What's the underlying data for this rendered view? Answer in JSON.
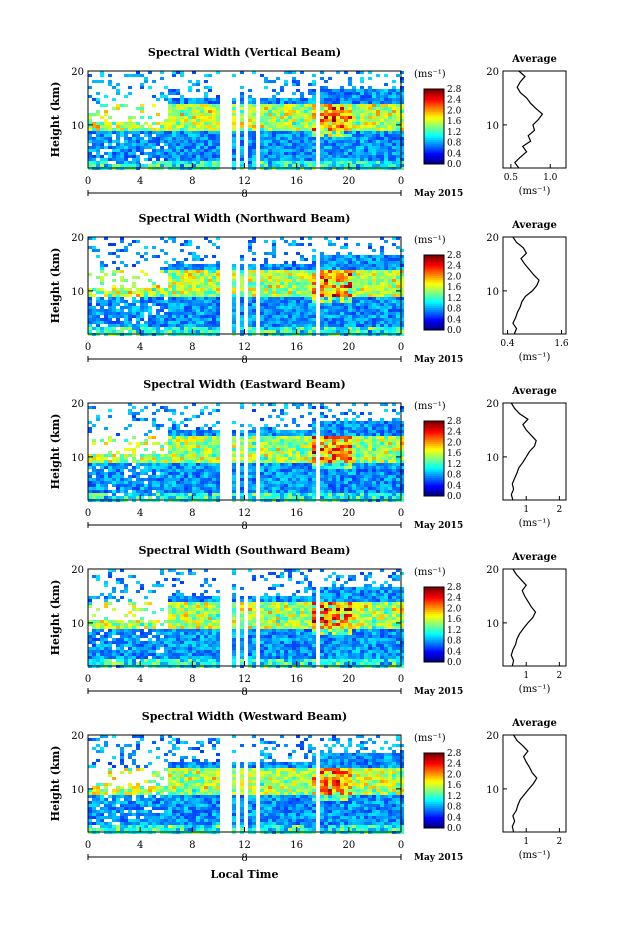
{
  "figure": {
    "date_label": "May 2015",
    "day_marker": "8",
    "xlabel": "Local Time"
  },
  "chart_data": [
    {
      "type": "heatmap",
      "title": "Spectral Width (Vertical Beam)",
      "ylabel": "Height (km)",
      "xticks": [
        "0",
        "4",
        "8",
        "12",
        "16",
        "20",
        "0"
      ],
      "xlim": [
        0,
        24
      ],
      "ylim": [
        2,
        20
      ],
      "yticks": [
        10,
        20
      ],
      "colorbar": {
        "label": "(ms⁻¹)",
        "min": 0.0,
        "max": 2.8,
        "ticks": [
          "0.0",
          "0.4",
          "0.8",
          "1.2",
          "1.6",
          "2.0",
          "2.4",
          "2.8"
        ]
      },
      "gaps_hours": [
        10.0,
        10.6,
        11.3,
        12.0,
        13.0,
        17.6
      ],
      "average_profile": {
        "title": "Average",
        "xlabel": "(ms⁻¹)",
        "xlim": [
          0.4,
          1.2
        ],
        "xticks": [
          "0.5",
          "1.0"
        ],
        "yticks": [
          10,
          20
        ],
        "points": [
          [
            0.6,
            2
          ],
          [
            0.55,
            3
          ],
          [
            0.62,
            4
          ],
          [
            0.7,
            5
          ],
          [
            0.65,
            6
          ],
          [
            0.75,
            7
          ],
          [
            0.72,
            8
          ],
          [
            0.8,
            9
          ],
          [
            0.78,
            10
          ],
          [
            0.85,
            11
          ],
          [
            0.9,
            12
          ],
          [
            0.82,
            13
          ],
          [
            0.75,
            14
          ],
          [
            0.7,
            15
          ],
          [
            0.62,
            16
          ],
          [
            0.58,
            17
          ],
          [
            0.62,
            18
          ],
          [
            0.68,
            19
          ],
          [
            0.6,
            20
          ]
        ]
      }
    },
    {
      "type": "heatmap",
      "title": "Spectral Width (Northward Beam)",
      "ylabel": "Height (km)",
      "xticks": [
        "0",
        "4",
        "8",
        "12",
        "16",
        "20",
        "0"
      ],
      "xlim": [
        0,
        24
      ],
      "ylim": [
        2,
        20
      ],
      "yticks": [
        10,
        20
      ],
      "colorbar": {
        "label": "(ms⁻¹)",
        "min": 0.0,
        "max": 2.8,
        "ticks": [
          "0.0",
          "0.4",
          "0.8",
          "1.2",
          "1.6",
          "2.0",
          "2.4",
          "2.8"
        ]
      },
      "gaps_hours": [
        10.0,
        10.6,
        11.3,
        12.0,
        13.0,
        17.6
      ],
      "average_profile": {
        "title": "Average",
        "xlabel": "(ms⁻¹)",
        "xlim": [
          0.3,
          1.7
        ],
        "xticks": [
          "0.4",
          "1.6"
        ],
        "yticks": [
          10,
          20
        ],
        "points": [
          [
            0.55,
            2
          ],
          [
            0.6,
            3
          ],
          [
            0.52,
            4
          ],
          [
            0.58,
            5
          ],
          [
            0.62,
            6
          ],
          [
            0.68,
            7
          ],
          [
            0.72,
            8
          ],
          [
            0.8,
            9
          ],
          [
            0.95,
            10
          ],
          [
            1.05,
            11
          ],
          [
            1.1,
            12
          ],
          [
            0.98,
            13
          ],
          [
            0.88,
            14
          ],
          [
            0.78,
            15
          ],
          [
            0.7,
            16
          ],
          [
            0.82,
            17
          ],
          [
            0.75,
            18
          ],
          [
            0.6,
            19
          ],
          [
            0.52,
            20
          ]
        ]
      }
    },
    {
      "type": "heatmap",
      "title": "Spectral Width (Eastward Beam)",
      "ylabel": "Height (km)",
      "xticks": [
        "0",
        "4",
        "8",
        "12",
        "16",
        "20",
        "0"
      ],
      "xlim": [
        0,
        24
      ],
      "ylim": [
        2,
        20
      ],
      "yticks": [
        10,
        20
      ],
      "colorbar": {
        "label": "(ms⁻¹)",
        "min": 0.0,
        "max": 2.8,
        "ticks": [
          "0.0",
          "0.4",
          "0.8",
          "1.2",
          "1.6",
          "2.0",
          "2.4",
          "2.8"
        ]
      },
      "gaps_hours": [
        10.0,
        10.6,
        11.3,
        12.0,
        13.0,
        17.6
      ],
      "average_profile": {
        "title": "Average",
        "xlabel": "(ms⁻¹)",
        "xlim": [
          0.3,
          2.2
        ],
        "xticks": [
          "1",
          "2"
        ],
        "yticks": [
          10,
          20
        ],
        "points": [
          [
            0.6,
            2
          ],
          [
            0.55,
            3
          ],
          [
            0.62,
            4
          ],
          [
            0.58,
            5
          ],
          [
            0.65,
            6
          ],
          [
            0.72,
            7
          ],
          [
            0.78,
            8
          ],
          [
            0.9,
            9
          ],
          [
            1.0,
            10
          ],
          [
            1.1,
            11
          ],
          [
            1.25,
            12
          ],
          [
            1.3,
            13
          ],
          [
            1.15,
            14
          ],
          [
            1.0,
            15
          ],
          [
            0.9,
            16
          ],
          [
            1.05,
            17
          ],
          [
            0.8,
            18
          ],
          [
            0.65,
            19
          ],
          [
            0.55,
            20
          ]
        ]
      }
    },
    {
      "type": "heatmap",
      "title": "Spectral Width (Southward Beam)",
      "ylabel": "Height (km)",
      "xticks": [
        "0",
        "4",
        "8",
        "12",
        "16",
        "20",
        "0"
      ],
      "xlim": [
        0,
        24
      ],
      "ylim": [
        2,
        20
      ],
      "yticks": [
        10,
        20
      ],
      "colorbar": {
        "label": "(ms⁻¹)",
        "min": 0.0,
        "max": 2.8,
        "ticks": [
          "0.0",
          "0.4",
          "0.8",
          "1.2",
          "1.6",
          "2.0",
          "2.4",
          "2.8"
        ]
      },
      "gaps_hours": [
        10.0,
        10.6,
        11.3,
        12.0,
        13.0,
        17.6
      ],
      "average_profile": {
        "title": "Average",
        "xlabel": "(ms⁻¹)",
        "xlim": [
          0.3,
          2.2
        ],
        "xticks": [
          "1",
          "2"
        ],
        "yticks": [
          10,
          20
        ],
        "points": [
          [
            0.58,
            2
          ],
          [
            0.62,
            3
          ],
          [
            0.55,
            4
          ],
          [
            0.6,
            5
          ],
          [
            0.68,
            6
          ],
          [
            0.72,
            7
          ],
          [
            0.8,
            8
          ],
          [
            0.92,
            9
          ],
          [
            1.05,
            10
          ],
          [
            1.2,
            11
          ],
          [
            1.28,
            12
          ],
          [
            1.15,
            13
          ],
          [
            1.05,
            14
          ],
          [
            0.95,
            15
          ],
          [
            0.88,
            16
          ],
          [
            1.0,
            17
          ],
          [
            0.85,
            18
          ],
          [
            0.7,
            19
          ],
          [
            0.6,
            20
          ]
        ]
      }
    },
    {
      "type": "heatmap",
      "title": "Spectral Width (Westward Beam)",
      "ylabel": "Height (km)",
      "xticks": [
        "0",
        "4",
        "8",
        "12",
        "16",
        "20",
        "0"
      ],
      "xlim": [
        0,
        24
      ],
      "ylim": [
        2,
        20
      ],
      "yticks": [
        10,
        20
      ],
      "colorbar": {
        "label": "(ms⁻¹)",
        "min": 0.0,
        "max": 2.8,
        "ticks": [
          "0.0",
          "0.4",
          "0.8",
          "1.2",
          "1.6",
          "2.0",
          "2.4",
          "2.8"
        ]
      },
      "gaps_hours": [
        10.0,
        10.6,
        11.3,
        12.0,
        13.0,
        17.6
      ],
      "average_profile": {
        "title": "Average",
        "xlabel": "(ms⁻¹)",
        "xlim": [
          0.3,
          2.2
        ],
        "xticks": [
          "1",
          "2"
        ],
        "yticks": [
          10,
          20
        ],
        "points": [
          [
            0.62,
            2
          ],
          [
            0.58,
            3
          ],
          [
            0.65,
            4
          ],
          [
            0.6,
            5
          ],
          [
            0.7,
            6
          ],
          [
            0.75,
            7
          ],
          [
            0.82,
            8
          ],
          [
            0.95,
            9
          ],
          [
            1.08,
            10
          ],
          [
            1.22,
            11
          ],
          [
            1.32,
            12
          ],
          [
            1.18,
            13
          ],
          [
            1.1,
            14
          ],
          [
            1.0,
            15
          ],
          [
            0.92,
            16
          ],
          [
            1.05,
            17
          ],
          [
            0.9,
            18
          ],
          [
            0.72,
            19
          ],
          [
            0.62,
            20
          ]
        ]
      }
    }
  ]
}
